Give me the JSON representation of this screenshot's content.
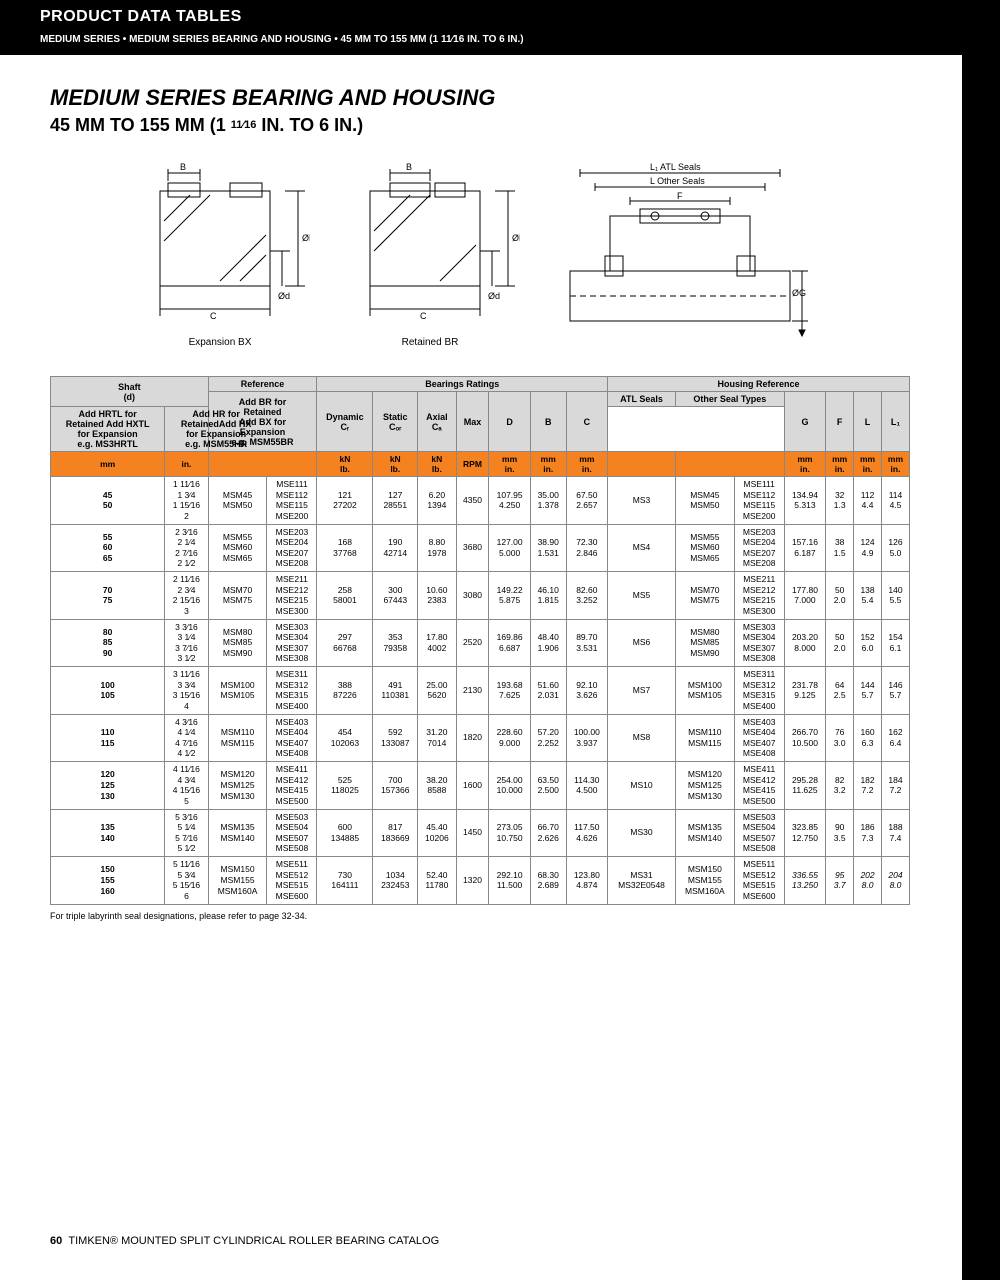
{
  "page_header": "PRODUCT DATA TABLES",
  "breadcrumb": "MEDIUM SERIES • MEDIUM SERIES BEARING AND HOUSING • 45 MM TO 155 MM (1 11⁄16 IN. TO 6 IN.)",
  "title": "MEDIUM SERIES BEARING AND HOUSING",
  "subtitle_a": "45 MM TO 155 MM (1 ",
  "subtitle_b": "11⁄16",
  "subtitle_c": " IN. TO 6 IN.)",
  "diag_labels": {
    "left": "Expansion BX",
    "mid": "Retained  BR",
    "right": ""
  },
  "diag_dims": {
    "B": "B",
    "C": "C",
    "Od": "Ød",
    "OD": "ØD",
    "L1": "L₁ ATL Seals",
    "L": "L Other Seals",
    "F": "F",
    "OG": "ØG"
  },
  "header_groups": {
    "shaft": "Shaft\n(d)",
    "reference": "Reference",
    "ref_sub": "Add BR for\nRetained\nAdd BX for\nExpansion\ne.g. MSM55BR",
    "bearings": "Bearings Ratings",
    "dynamic": "Dynamic\nCᵣ",
    "static": "Static\nCₒᵣ",
    "axial": "Axial\nCₐ",
    "max": "Max",
    "D": "D",
    "B": "B",
    "C": "C",
    "housing": "Housing Reference",
    "atl": "ATL Seals",
    "atl_sub": "Add HRTL for\nRetained Add HXTL\nfor Expansion\ne.g. MS3HRTL",
    "other": "Other Seal Types",
    "other_sub": "Add HR for\nRetainedAdd HX\nfor Expansion\ne.g. MSM55HR",
    "G": "G",
    "F": "F",
    "L": "L",
    "L1": "L₁"
  },
  "units": {
    "mm": "mm",
    "in": "in.",
    "kn": "kN\nlb.",
    "rpm": "RPM",
    "mmin": "mm\nin."
  },
  "rows": [
    {
      "s_mm": "45\n50",
      "s_in": "1 11⁄16\n1 3⁄4\n1 15⁄16\n2",
      "ref1": "MSM45\nMSM50",
      "ref2": "MSE111\nMSE112\nMSE115\nMSE200",
      "dyn": "121\n27202",
      "stat": "127\n28551",
      "ax": "6.20\n1394",
      "rpm": "4350",
      "D": "107.95\n4.250",
      "B": "35.00\n1.378",
      "C": "67.50\n2.657",
      "atl": "MS3",
      "oth1": "MSM45\nMSM50",
      "oth2": "MSE111\nMSE112\nMSE115\nMSE200",
      "G": "134.94\n5.313",
      "F": "32\n1.3",
      "L": "112\n4.4",
      "L1": "114\n4.5"
    },
    {
      "s_mm": "55\n60\n65",
      "s_in": "2 3⁄16\n2 1⁄4\n2 7⁄16\n2 1⁄2",
      "ref1": "MSM55\nMSM60\nMSM65",
      "ref2": "MSE203\nMSE204\nMSE207\nMSE208",
      "dyn": "168\n37768",
      "stat": "190\n42714",
      "ax": "8.80\n1978",
      "rpm": "3680",
      "D": "127.00\n5.000",
      "B": "38.90\n1.531",
      "C": "72.30\n2.846",
      "atl": "MS4",
      "oth1": "MSM55\nMSM60\nMSM65",
      "oth2": "MSE203\nMSE204\nMSE207\nMSE208",
      "G": "157.16\n6.187",
      "F": "38\n1.5",
      "L": "124\n4.9",
      "L1": "126\n5.0"
    },
    {
      "s_mm": "70\n75",
      "s_in": "2 11⁄16\n2 3⁄4\n2 15⁄16\n3",
      "ref1": "MSM70\nMSM75",
      "ref2": "MSE211\nMSE212\nMSE215\nMSE300",
      "dyn": "258\n58001",
      "stat": "300\n67443",
      "ax": "10.60\n2383",
      "rpm": "3080",
      "D": "149.22\n5.875",
      "B": "46.10\n1.815",
      "C": "82.60\n3.252",
      "atl": "MS5",
      "oth1": "MSM70\nMSM75",
      "oth2": "MSE211\nMSE212\nMSE215\nMSE300",
      "G": "177.80\n7.000",
      "F": "50\n2.0",
      "L": "138\n5.4",
      "L1": "140\n5.5"
    },
    {
      "s_mm": "80\n85\n90",
      "s_in": "3 3⁄16\n3 1⁄4\n3 7⁄16\n3 1⁄2",
      "ref1": "MSM80\nMSM85\nMSM90",
      "ref2": "MSE303\nMSE304\nMSE307\nMSE308",
      "dyn": "297\n66768",
      "stat": "353\n79358",
      "ax": "17.80\n4002",
      "rpm": "2520",
      "D": "169.86\n6.687",
      "B": "48.40\n1.906",
      "C": "89.70\n3.531",
      "atl": "MS6",
      "oth1": "MSM80\nMSM85\nMSM90",
      "oth2": "MSE303\nMSE304\nMSE307\nMSE308",
      "G": "203.20\n8.000",
      "F": "50\n2.0",
      "L": "152\n6.0",
      "L1": "154\n6.1"
    },
    {
      "s_mm": "100\n105",
      "s_in": "3 11⁄16\n3 3⁄4\n3 15⁄16\n4",
      "ref1": "MSM100\nMSM105",
      "ref2": "MSE311\nMSE312\nMSE315\nMSE400",
      "dyn": "388\n87226",
      "stat": "491\n110381",
      "ax": "25.00\n5620",
      "rpm": "2130",
      "D": "193.68\n7.625",
      "B": "51.60\n2.031",
      "C": "92.10\n3.626",
      "atl": "MS7",
      "oth1": "MSM100\nMSM105",
      "oth2": "MSE311\nMSE312\nMSE315\nMSE400",
      "G": "231.78\n9.125",
      "F": "64\n2.5",
      "L": "144\n5.7",
      "L1": "146\n5.7"
    },
    {
      "s_mm": "110\n115",
      "s_in": "4 3⁄16\n4 1⁄4\n4 7⁄16\n4 1⁄2",
      "ref1": "MSM110\nMSM115",
      "ref2": "MSE403\nMSE404\nMSE407\nMSE408",
      "dyn": "454\n102063",
      "stat": "592\n133087",
      "ax": "31.20\n7014",
      "rpm": "1820",
      "D": "228.60\n9.000",
      "B": "57.20\n2.252",
      "C": "100.00\n3.937",
      "atl": "MS8",
      "oth1": "MSM110\nMSM115",
      "oth2": "MSE403\nMSE404\nMSE407\nMSE408",
      "G": "266.70\n10.500",
      "F": "76\n3.0",
      "L": "160\n6.3",
      "L1": "162\n6.4"
    },
    {
      "s_mm": "120\n125\n130",
      "s_in": "4 11⁄16\n4 3⁄4\n4 15⁄16\n5",
      "ref1": "MSM120\nMSM125\nMSM130",
      "ref2": "MSE411\nMSE412\nMSE415\nMSE500",
      "dyn": "525\n118025",
      "stat": "700\n157366",
      "ax": "38.20\n8588",
      "rpm": "1600",
      "D": "254.00\n10.000",
      "B": "63.50\n2.500",
      "C": "114.30\n4.500",
      "atl": "MS10",
      "oth1": "MSM120\nMSM125\nMSM130",
      "oth2": "MSE411\nMSE412\nMSE415\nMSE500",
      "G": "295.28\n11.625",
      "F": "82\n3.2",
      "L": "182\n7.2",
      "L1": "184\n7.2"
    },
    {
      "s_mm": "135\n140",
      "s_in": "5 3⁄16\n5 1⁄4\n5 7⁄16\n5 1⁄2",
      "ref1": "MSM135\nMSM140",
      "ref2": "MSE503\nMSE504\nMSE507\nMSE508",
      "dyn": "600\n134885",
      "stat": "817\n183669",
      "ax": "45.40\n10206",
      "rpm": "1450",
      "D": "273.05\n10.750",
      "B": "66.70\n2.626",
      "C": "117.50\n4.626",
      "atl": "MS30",
      "oth1": "MSM135\nMSM140",
      "oth2": "MSE503\nMSE504\nMSE507\nMSE508",
      "G": "323.85\n12.750",
      "F": "90\n3.5",
      "L": "186\n7.3",
      "L1": "188\n7.4"
    },
    {
      "s_mm": "150\n155\n160",
      "s_in": "5 11⁄16\n5 3⁄4\n5 15⁄16\n6",
      "ref1": "MSM150\nMSM155\nMSM160A",
      "ref2": "MSE511\nMSE512\nMSE515\nMSE600",
      "dyn": "730\n164111",
      "stat": "1034\n232453",
      "ax": "52.40\n11780",
      "rpm": "1320",
      "D": "292.10\n11.500",
      "B": "68.30\n2.689",
      "C": "123.80\n4.874",
      "atl": "MS31\nMS32E0548",
      "oth1": "MSM150\nMSM155\nMSM160A",
      "oth2": "MSE511\nMSE512\nMSE515\nMSE600",
      "G": "336.55\n13.250",
      "F": "95\n3.7",
      "L": "202\n8.0",
      "L1": "204\n8.0",
      "italic": true
    }
  ],
  "footnote": "For triple labyrinth seal designations, please refer to page 32-34.",
  "footer_page": "60",
  "footer_text": "TIMKEN® MOUNTED SPLIT CYLINDRICAL ROLLER BEARING CATALOG",
  "colors": {
    "orange": "#f58220",
    "grey": "#d9d9d9",
    "black": "#000000"
  }
}
